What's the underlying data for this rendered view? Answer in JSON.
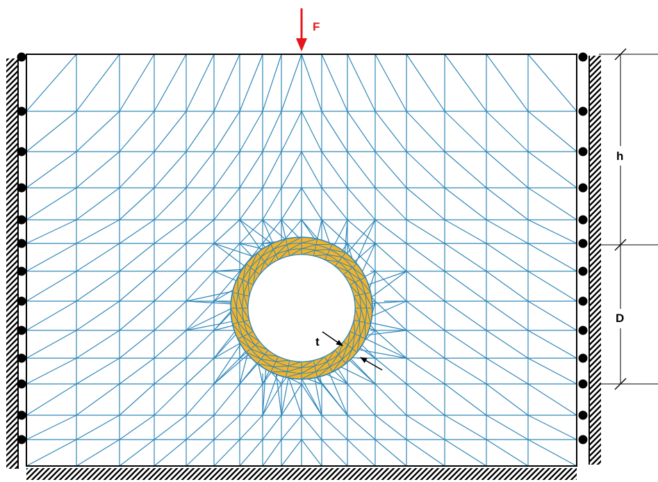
{
  "labels": {
    "force": "F",
    "height": "h",
    "diameter": "D",
    "thickness": "t"
  },
  "colors": {
    "mesh": "#2f86b8",
    "liner": "#f2b32c",
    "force": "#e8141b",
    "ink": "#000000"
  },
  "mesh": {
    "grid_columns": 16,
    "grid_rows": 13,
    "liner_ring_segments": 28,
    "liner_ring_layers": 3
  },
  "supports": {
    "left_roller_count": 13,
    "right_roller_count": 13,
    "bottom": "fixed"
  }
}
